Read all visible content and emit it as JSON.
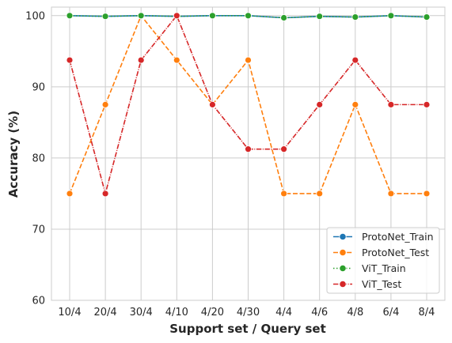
{
  "chart_data": {
    "type": "line",
    "title": "",
    "xlabel": "Support set / Query set",
    "ylabel": "Accuracy (%)",
    "categories": [
      "10/4",
      "20/4",
      "30/4",
      "4/10",
      "4/20",
      "4/30",
      "4/4",
      "4/6",
      "4/8",
      "6/4",
      "8/4"
    ],
    "ylim": [
      60,
      101.2
    ],
    "yticks": [
      60,
      70,
      80,
      90,
      100
    ],
    "grid": true,
    "legend_position": "lower-right",
    "series": [
      {
        "name": "ProtoNet_Train",
        "color": "#1f77b4",
        "dash": "solid",
        "values": [
          100,
          99.9,
          100,
          99.9,
          100,
          100,
          99.7,
          99.9,
          99.8,
          100,
          99.8
        ]
      },
      {
        "name": "ProtoNet_Test",
        "color": "#ff7f0e",
        "dash": "dashed",
        "values": [
          75,
          87.5,
          100,
          93.75,
          87.5,
          93.75,
          75,
          75,
          87.5,
          75,
          75
        ]
      },
      {
        "name": "ViT_Train",
        "color": "#2ca02c",
        "dash": "dotted",
        "values": [
          100,
          99.9,
          100,
          99.9,
          100,
          100,
          99.7,
          99.9,
          99.8,
          100,
          99.8
        ]
      },
      {
        "name": "ViT_Test",
        "color": "#d62728",
        "dash": "dashdot",
        "values": [
          93.75,
          75,
          93.75,
          100,
          87.5,
          81.25,
          81.25,
          87.5,
          93.75,
          87.5,
          87.5
        ]
      }
    ]
  }
}
